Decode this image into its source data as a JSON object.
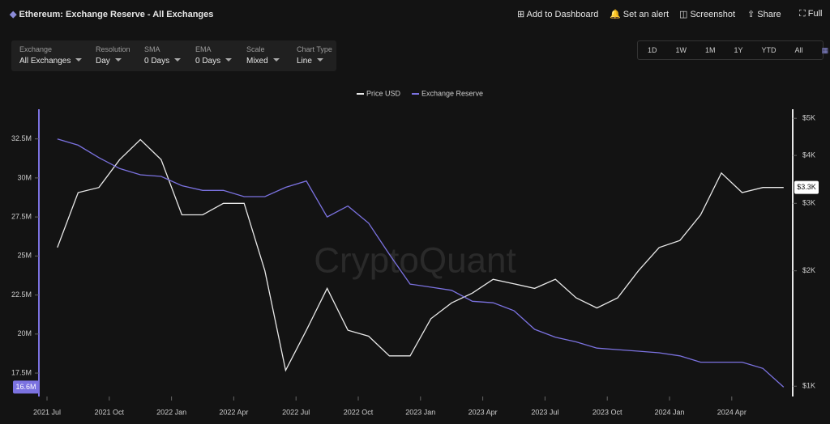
{
  "header": {
    "title": "Ethereum: Exchange Reserve - All Exchanges",
    "actions": [
      "Add to Dashboard",
      "Set an alert",
      "Screenshot",
      "Share",
      "Full"
    ]
  },
  "controls": [
    {
      "label": "Exchange",
      "value": "All Exchanges"
    },
    {
      "label": "Resolution",
      "value": "Day"
    },
    {
      "label": "SMA",
      "value": "0 Days"
    },
    {
      "label": "EMA",
      "value": "0 Days"
    },
    {
      "label": "Scale",
      "value": "Mixed"
    },
    {
      "label": "Chart Type",
      "value": "Line"
    }
  ],
  "ranges": [
    "1D",
    "1W",
    "1M",
    "1Y",
    "YTD",
    "All"
  ],
  "watermark": "CryptoQuant",
  "chart_data": {
    "type": "line",
    "x": [
      "2021-07",
      "2021-08",
      "2021-09",
      "2021-10",
      "2021-11",
      "2021-12",
      "2022-01",
      "2022-02",
      "2022-03",
      "2022-04",
      "2022-05",
      "2022-06",
      "2022-07",
      "2022-08",
      "2022-09",
      "2022-10",
      "2022-11",
      "2022-12",
      "2023-01",
      "2023-02",
      "2023-03",
      "2023-04",
      "2023-05",
      "2023-06",
      "2023-07",
      "2023-08",
      "2023-09",
      "2023-10",
      "2023-11",
      "2023-12",
      "2024-01",
      "2024-02",
      "2024-03",
      "2024-04",
      "2024-05",
      "2024-06"
    ],
    "xticks": [
      {
        "value": "2021-07",
        "label": "2021 Jul"
      },
      {
        "value": "2021-10",
        "label": "2021 Oct"
      },
      {
        "value": "2022-01",
        "label": "2022 Jan"
      },
      {
        "value": "2022-04",
        "label": "2022 Apr"
      },
      {
        "value": "2022-07",
        "label": "2022 Jul"
      },
      {
        "value": "2022-10",
        "label": "2022 Oct"
      },
      {
        "value": "2023-01",
        "label": "2023 Jan"
      },
      {
        "value": "2023-04",
        "label": "2023 Apr"
      },
      {
        "value": "2023-07",
        "label": "2023 Jul"
      },
      {
        "value": "2023-10",
        "label": "2023 Oct"
      },
      {
        "value": "2024-01",
        "label": "2024 Jan"
      },
      {
        "value": "2024-04",
        "label": "2024 Apr"
      }
    ],
    "ylim": [
      16,
      34.4
    ],
    "yticks": [
      {
        "value": 17.5,
        "label": "17.5M"
      },
      {
        "value": 20,
        "label": "20M"
      },
      {
        "value": 22.5,
        "label": "22.5M"
      },
      {
        "value": 25,
        "label": "25M"
      },
      {
        "value": 27.5,
        "label": "27.5M"
      },
      {
        "value": 30,
        "label": "30M"
      },
      {
        "value": 32.5,
        "label": "32.5M"
      }
    ],
    "y2lim": [
      940,
      5280
    ],
    "y2log": true,
    "y2ticks": [
      {
        "value": 1000,
        "label": "$1K"
      },
      {
        "value": 2000,
        "label": "$2K"
      },
      {
        "value": 3000,
        "label": "$3K"
      },
      {
        "value": 4000,
        "label": "$4K"
      },
      {
        "value": 5000,
        "label": "$5K"
      }
    ],
    "series": [
      {
        "name": "Price USD",
        "color": "#e8e8e8",
        "axis": "y2",
        "values": [
          2300,
          3200,
          3300,
          3900,
          4400,
          3900,
          2800,
          2800,
          3000,
          3000,
          2000,
          1100,
          1400,
          1800,
          1400,
          1350,
          1200,
          1200,
          1500,
          1650,
          1750,
          1900,
          1850,
          1800,
          1900,
          1700,
          1600,
          1700,
          2000,
          2300,
          2400,
          2800,
          3600,
          3200,
          3300,
          3300
        ],
        "value_labels": [
          null,
          null,
          null,
          null,
          null,
          null,
          null,
          null,
          null,
          null,
          null,
          null,
          null,
          null,
          null,
          null,
          null,
          null,
          null,
          null,
          null,
          null,
          null,
          null,
          null,
          null,
          null,
          null,
          null,
          null,
          null,
          null,
          null,
          null,
          null,
          "$3.3K"
        ]
      },
      {
        "name": "Exchange Reserve",
        "color": "#7b72e0",
        "values": [
          32.5,
          32.1,
          31.3,
          30.6,
          30.2,
          30.1,
          29.5,
          29.2,
          29.2,
          28.8,
          28.8,
          29.4,
          29.8,
          27.5,
          28.2,
          27.1,
          25.1,
          23.2,
          23.0,
          22.8,
          22.1,
          22.0,
          21.5,
          20.3,
          19.8,
          19.5,
          19.1,
          19.0,
          18.9,
          18.8,
          18.6,
          18.2,
          18.2,
          18.2,
          17.8,
          16.6
        ],
        "value_labels": [
          null,
          null,
          null,
          null,
          null,
          null,
          null,
          null,
          null,
          null,
          null,
          null,
          null,
          null,
          null,
          null,
          null,
          null,
          null,
          null,
          null,
          null,
          null,
          null,
          null,
          null,
          null,
          null,
          null,
          null,
          null,
          null,
          null,
          null,
          null,
          "16.6M"
        ]
      }
    ]
  }
}
